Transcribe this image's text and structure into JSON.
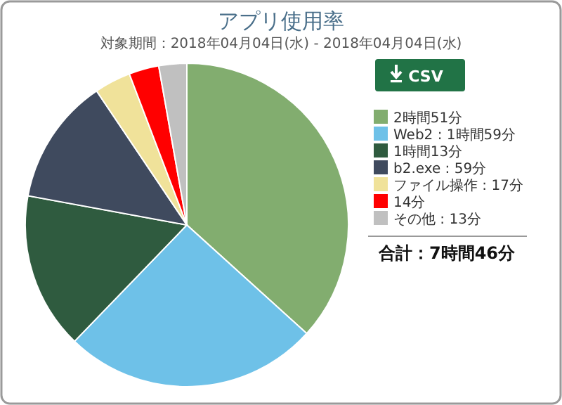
{
  "chart_data": {
    "type": "pie",
    "title": "アプリ使用率",
    "subtitle": "対象期間：2018年04月04日(水) - 2018年04月04日(水)",
    "categories": [
      "2時間51分",
      "Web2 : 1時間59分",
      "1時間13分",
      "b2.exe : 59分",
      "ファイル操作 : 17分",
      "14分",
      "その他 : 13分"
    ],
    "values": [
      171,
      119,
      73,
      59,
      17,
      14,
      13
    ],
    "colors": [
      "#82ad6f",
      "#6ec1e8",
      "#2f5b3f",
      "#3f4a5e",
      "#f0e29a",
      "#ff0000",
      "#c0c0c0"
    ],
    "legend": "right",
    "annotations": [
      "CSV",
      "合計：7時間46分"
    ]
  }
}
